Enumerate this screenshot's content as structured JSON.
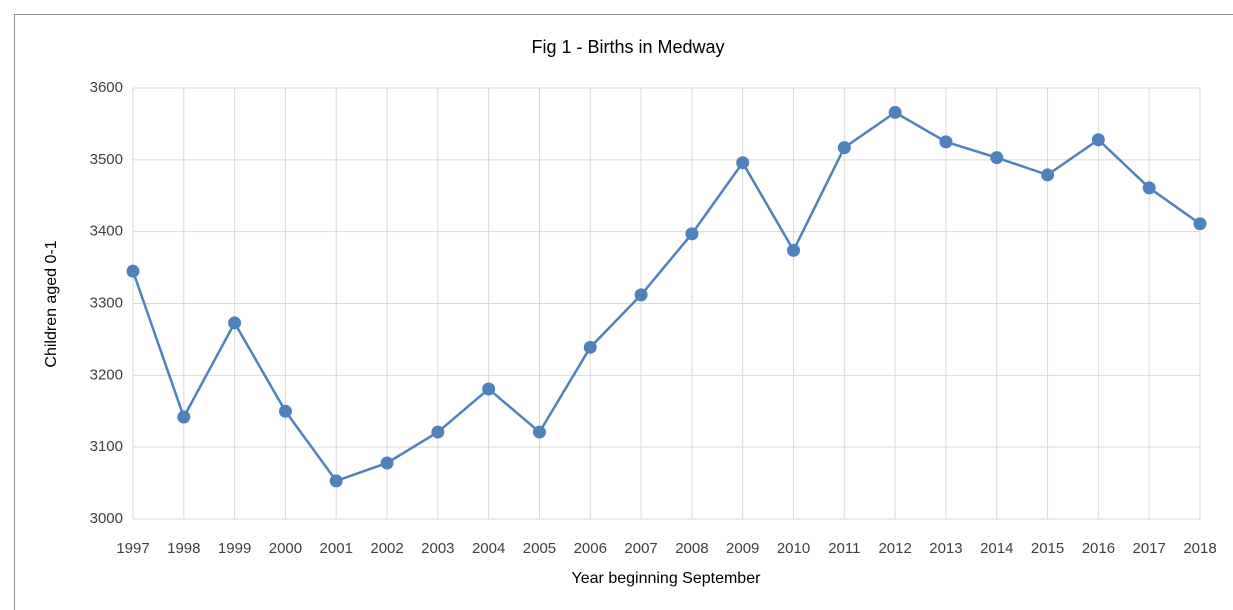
{
  "chart_data": {
    "type": "line",
    "title": "Fig 1 - Births in Medway",
    "x_label": "Year beginning September",
    "y_label": "Children aged 0-1",
    "categories": [
      "1997",
      "1998",
      "1999",
      "2000",
      "2001",
      "2002",
      "2003",
      "2004",
      "2005",
      "2006",
      "2007",
      "2008",
      "2009",
      "2010",
      "2011",
      "2012",
      "2013",
      "2014",
      "2015",
      "2016",
      "2017",
      "2018"
    ],
    "series": [
      {
        "name": "Births",
        "color": "#4f81bd",
        "values": [
          3345,
          3142,
          3273,
          3150,
          3053,
          3078,
          3121,
          3181,
          3121,
          3239,
          3312,
          3397,
          3496,
          3374,
          3517,
          3566,
          3525,
          3503,
          3479,
          3528,
          3461,
          3411
        ]
      }
    ],
    "ylim": [
      3000,
      3600
    ],
    "yticks": [
      3000,
      3100,
      3200,
      3300,
      3400,
      3500,
      3600
    ],
    "grid": true
  }
}
